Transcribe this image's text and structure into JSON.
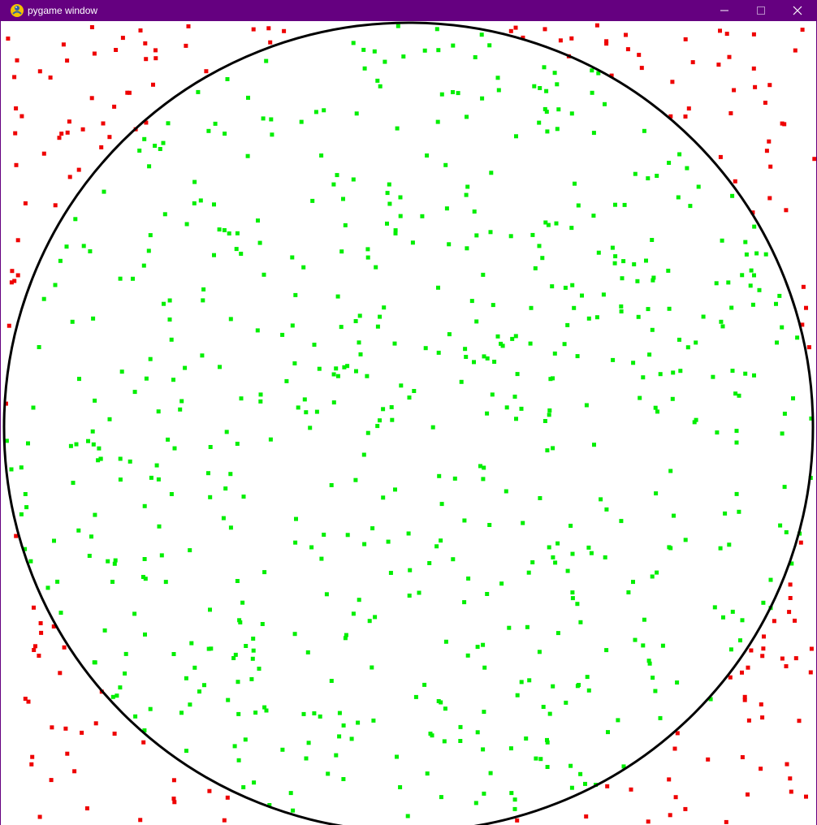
{
  "window": {
    "title": "pygame window",
    "titlebar_color": "#650080",
    "title_text_color": "#ffffff",
    "icons": {
      "app": "pygame-snake-icon",
      "minimize": "minimize-icon",
      "maximize": "maximize-icon",
      "close": "close-icon"
    }
  },
  "simulation": {
    "background_color": "#ffffff",
    "circle_color": "#000000",
    "inside_color": "#00ee00",
    "outside_color": "#ee0000",
    "shape": "circle inscribed in square",
    "inside_fraction_estimate": 0.7854,
    "inside_points_estimate": 640,
    "outside_points_estimate": 180
  }
}
